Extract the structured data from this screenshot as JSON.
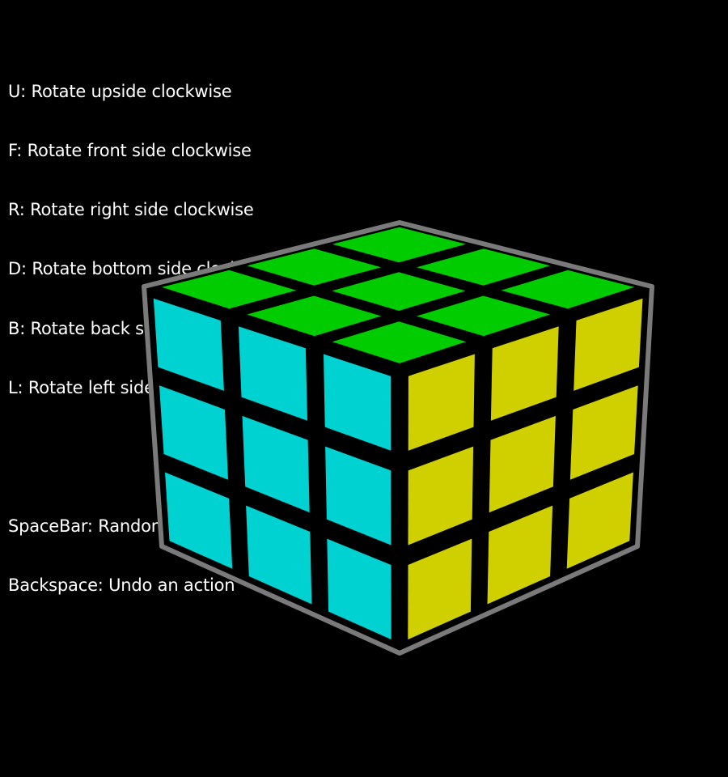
{
  "controls": {
    "rotations": [
      "U: Rotate upside clockwise",
      "F: Rotate front side clockwise",
      "R: Rotate right side clockwise",
      "D: Rotate bottom side clockwise",
      "B: Rotate back side clockwise",
      "L: Rotate left side clock wise"
    ],
    "actions": [
      "SpaceBar: Random shuffle",
      "Backspace: Undo an action"
    ]
  },
  "cube": {
    "faces": {
      "top": {
        "color": "#00cc00",
        "label": "green"
      },
      "left": {
        "color": "#00d2d2",
        "label": "cyan"
      },
      "right": {
        "color": "#d0d000",
        "label": "yellow"
      }
    },
    "grid_color": "#000000",
    "outline_color": "#7a7a7a"
  }
}
